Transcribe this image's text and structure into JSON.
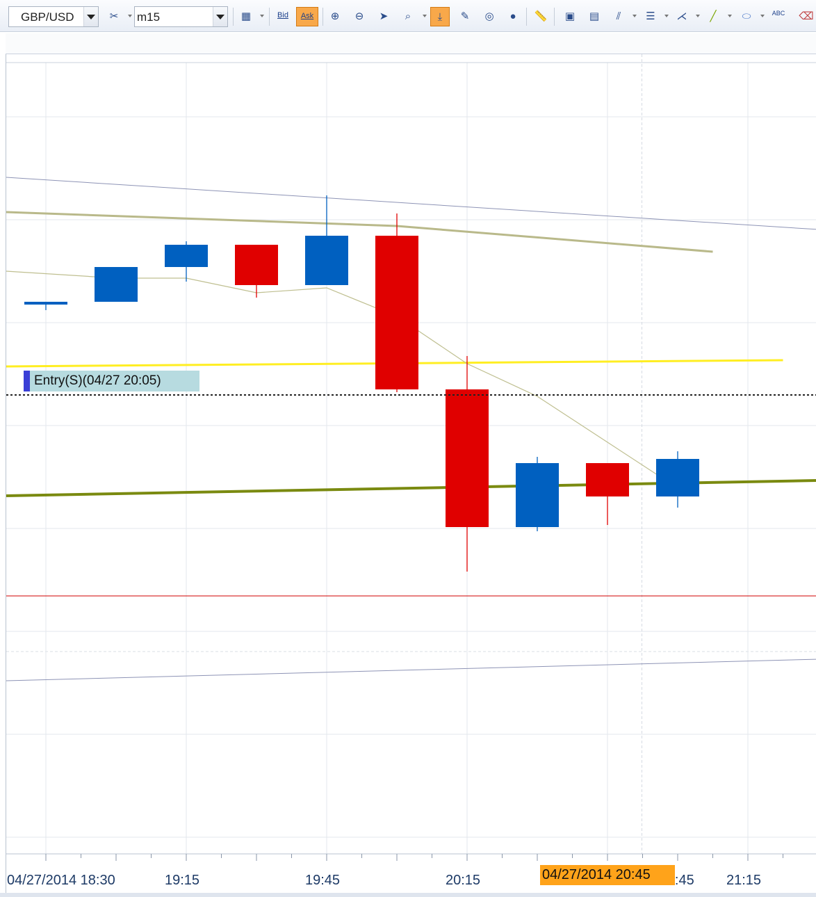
{
  "toolbar": {
    "symbol": "GBP/USD",
    "timeframe": "m15",
    "bid_label": "Bid",
    "ask_label": "Ask",
    "abc_label": "ABC"
  },
  "annotations": {
    "entry_label": "Entry(S)(04/27 20:05)",
    "cursor_time": "04/27/2014 20:45"
  },
  "colors": {
    "bull": "#0060c0",
    "bear": "#e00000",
    "yellow_line": "#ffee22",
    "olive_line": "#7a8a10",
    "ma_thick": "#b9b98a",
    "ma_thin": "#bfbf90",
    "channel": "#8d93b5",
    "price_line": "#d00000"
  },
  "chart_data": {
    "type": "candlestick",
    "symbol": "GBP/USD",
    "timeframe": "m15",
    "x_tick_labels": [
      "04/27/2014 18:30",
      "19:15",
      "19:45",
      "20:15",
      "04/27/2014 20:45",
      "21:15"
    ],
    "candles": [
      {
        "time": "18:35",
        "open": 93,
        "high": 93,
        "low": 81,
        "close": 93
      },
      {
        "time": "18:50",
        "open": 93,
        "high": 143,
        "low": 93,
        "close": 143
      },
      {
        "time": "19:05",
        "open": 143,
        "high": 180,
        "low": 122,
        "close": 175
      },
      {
        "time": "19:20",
        "open": 175,
        "high": 175,
        "low": 99,
        "close": 117
      },
      {
        "time": "19:35",
        "open": 117,
        "high": 246,
        "low": 117,
        "close": 188
      },
      {
        "time": "19:50",
        "open": 188,
        "high": 220,
        "low": -37,
        "close": -33
      },
      {
        "time": "20:05",
        "open": -33,
        "high": 15,
        "low": -295,
        "close": -231
      },
      {
        "time": "20:20",
        "open": -231,
        "high": -130,
        "low": -237,
        "close": -139
      },
      {
        "time": "20:35",
        "open": -139,
        "high": -139,
        "low": -228,
        "close": -187
      },
      {
        "time": "20:50",
        "open": -187,
        "high": -122,
        "low": -203,
        "close": -133
      }
    ],
    "moving_average_slow": [
      {
        "bar": 0,
        "value": 222
      },
      {
        "bar": 5,
        "value": 202
      },
      {
        "bar": 9.5,
        "value": 165
      }
    ],
    "moving_average_fast": [
      {
        "bar": 0,
        "value": 137
      },
      {
        "bar": 1,
        "value": 127
      },
      {
        "bar": 2,
        "value": 127
      },
      {
        "bar": 3,
        "value": 106
      },
      {
        "bar": 4,
        "value": 113
      },
      {
        "bar": 5,
        "value": 72
      },
      {
        "bar": 6,
        "value": 4
      },
      {
        "bar": 7,
        "value": -43
      },
      {
        "bar": 8,
        "value": -109
      },
      {
        "bar": 9,
        "value": -175
      }
    ],
    "trend_lines": [
      {
        "name": "channel-upper",
        "from": {
          "bar": 0,
          "value": 272
        },
        "to": {
          "bar": 11,
          "value": 197
        }
      },
      {
        "name": "channel-lower",
        "from": {
          "bar": 0,
          "value": -452
        },
        "to": {
          "bar": 11,
          "value": -421
        }
      },
      {
        "name": "yellow-trend",
        "from": {
          "bar": 0,
          "value": 0
        },
        "to": {
          "bar": 10.5,
          "value": 9
        }
      },
      {
        "name": "olive-trend",
        "from": {
          "bar": 0,
          "value": -186
        },
        "to": {
          "bar": 11,
          "value": -164
        }
      }
    ],
    "entry_level": -25,
    "current_price": -222,
    "cursor_bar": 8.5,
    "grid": true
  }
}
